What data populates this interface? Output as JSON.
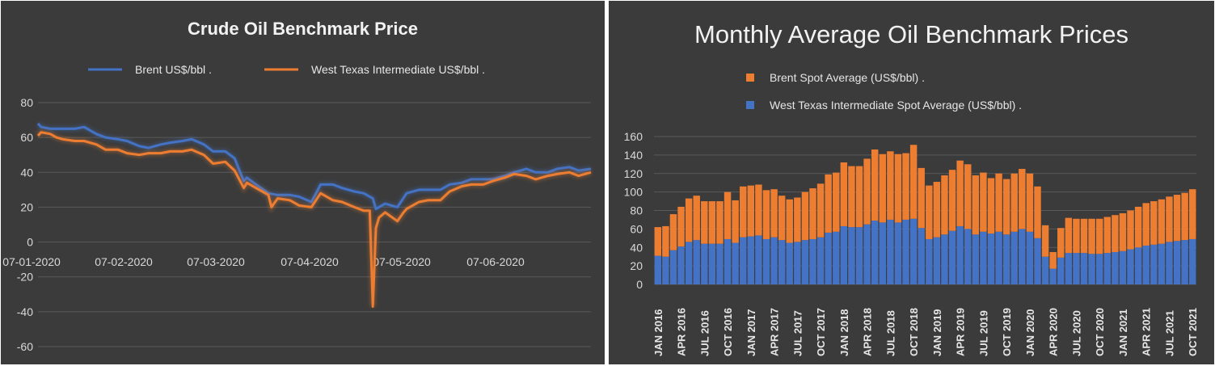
{
  "chart_data": [
    {
      "type": "line",
      "title": "Crude Oil Benchmark Price",
      "legend_position": "top",
      "grid": true,
      "ylim": [
        -60,
        80
      ],
      "yticks": [
        80,
        60,
        40,
        20,
        0,
        -20,
        -40,
        -60
      ],
      "xticks": [
        "07-01-2020",
        "07-02-2020",
        "07-03-2020",
        "07-04-2020",
        "07-05-2020",
        "07-06-2020"
      ],
      "x_start": "2020-01-02",
      "x_end": "2020-06-30",
      "series": [
        {
          "name": "Brent  US$/bbl .",
          "color": "#4472c4",
          "dates": [
            "2020-01-02",
            "2020-01-03",
            "2020-01-06",
            "2020-01-08",
            "2020-01-10",
            "2020-01-14",
            "2020-01-17",
            "2020-01-21",
            "2020-01-24",
            "2020-01-28",
            "2020-01-31",
            "2020-02-04",
            "2020-02-07",
            "2020-02-11",
            "2020-02-14",
            "2020-02-18",
            "2020-02-21",
            "2020-02-25",
            "2020-02-28",
            "2020-03-03",
            "2020-03-06",
            "2020-03-09",
            "2020-03-10",
            "2020-03-13",
            "2020-03-17",
            "2020-03-20",
            "2020-03-24",
            "2020-03-27",
            "2020-03-31",
            "2020-04-03",
            "2020-04-07",
            "2020-04-10",
            "2020-04-14",
            "2020-04-17",
            "2020-04-20",
            "2020-04-21",
            "2020-04-22",
            "2020-04-24",
            "2020-04-28",
            "2020-05-01",
            "2020-05-05",
            "2020-05-08",
            "2020-05-12",
            "2020-05-15",
            "2020-05-19",
            "2020-05-22",
            "2020-05-26",
            "2020-05-29",
            "2020-06-02",
            "2020-06-05",
            "2020-06-09",
            "2020-06-12",
            "2020-06-16",
            "2020-06-19",
            "2020-06-23",
            "2020-06-26",
            "2020-06-30"
          ],
          "values": [
            68,
            66,
            65,
            65,
            65,
            65,
            66,
            62,
            60,
            59,
            58,
            55,
            54,
            56,
            57,
            58,
            59,
            56,
            52,
            52,
            48,
            35,
            37,
            33,
            28,
            27,
            27,
            26,
            23,
            33,
            33,
            31,
            29,
            28,
            25,
            19,
            20,
            22,
            20,
            28,
            30,
            30,
            30,
            33,
            34,
            36,
            36,
            36,
            38,
            40,
            42,
            40,
            40,
            42,
            43,
            41,
            42
          ]
        },
        {
          "name": "West Texas Intermediate US$/bbl .",
          "color": "#ed7d31",
          "dates": [
            "2020-01-02",
            "2020-01-03",
            "2020-01-06",
            "2020-01-08",
            "2020-01-10",
            "2020-01-14",
            "2020-01-17",
            "2020-01-21",
            "2020-01-24",
            "2020-01-28",
            "2020-01-31",
            "2020-02-04",
            "2020-02-07",
            "2020-02-11",
            "2020-02-14",
            "2020-02-18",
            "2020-02-21",
            "2020-02-25",
            "2020-02-28",
            "2020-03-03",
            "2020-03-06",
            "2020-03-09",
            "2020-03-10",
            "2020-03-13",
            "2020-03-17",
            "2020-03-18",
            "2020-03-20",
            "2020-03-24",
            "2020-03-27",
            "2020-03-31",
            "2020-04-03",
            "2020-04-07",
            "2020-04-10",
            "2020-04-14",
            "2020-04-17",
            "2020-04-19",
            "2020-04-20",
            "2020-04-21",
            "2020-04-22",
            "2020-04-24",
            "2020-04-28",
            "2020-04-30",
            "2020-05-01",
            "2020-05-05",
            "2020-05-08",
            "2020-05-12",
            "2020-05-15",
            "2020-05-19",
            "2020-05-22",
            "2020-05-26",
            "2020-05-29",
            "2020-06-02",
            "2020-06-05",
            "2020-06-09",
            "2020-06-12",
            "2020-06-16",
            "2020-06-19",
            "2020-06-23",
            "2020-06-26",
            "2020-06-30"
          ],
          "values": [
            61,
            63,
            62,
            60,
            59,
            58,
            58,
            56,
            53,
            53,
            51,
            50,
            51,
            51,
            52,
            52,
            53,
            50,
            45,
            46,
            41,
            31,
            34,
            31,
            27,
            20,
            25,
            24,
            21,
            20,
            28,
            24,
            23,
            20,
            18,
            18,
            -37,
            8,
            14,
            17,
            12,
            17,
            19,
            23,
            24,
            24,
            29,
            32,
            33,
            33,
            35,
            37,
            39,
            38,
            36,
            38,
            39,
            40,
            38,
            40
          ]
        }
      ]
    },
    {
      "type": "bar",
      "stacked": true,
      "title": "Monthly Average Oil Benchmark Prices",
      "legend_position": "top-left",
      "grid": true,
      "ylim": [
        0,
        160
      ],
      "yticks": [
        160,
        140,
        120,
        100,
        80,
        60,
        40,
        20,
        0
      ],
      "xticks": [
        "JAN 2016",
        "APR 2016",
        "JUL 2016",
        "OCT 2016",
        "JAN 2017",
        "APR 2017",
        "JUL 2017",
        "OCT 2017",
        "JAN 2018",
        "APR 2018",
        "JUL 2018",
        "OCT 2018",
        "JAN 2019",
        "APR 2019",
        "JUL 2019",
        "OCT 2019",
        "JAN 2020",
        "APR 2020",
        "JUL 2020",
        "OCT 2020",
        "JAN 2021",
        "APR 2021",
        "JUL 2021",
        "OCT 2021"
      ],
      "series": [
        {
          "name": "West Texas Intermediate Spot Average (US$/bbl) .",
          "color": "#4472c4",
          "values": [
            31,
            30,
            37,
            41,
            46,
            48,
            44,
            44,
            44,
            49,
            45,
            51,
            52,
            53,
            49,
            51,
            48,
            45,
            46,
            48,
            49,
            51,
            56,
            57,
            63,
            62,
            62,
            65,
            69,
            67,
            70,
            67,
            70,
            71,
            61,
            49,
            51,
            54,
            58,
            63,
            60,
            54,
            57,
            55,
            57,
            54,
            57,
            60,
            57,
            50,
            30,
            17,
            29,
            34,
            34,
            34,
            33,
            33,
            34,
            35,
            36,
            38,
            40,
            42,
            43,
            44,
            46,
            47,
            48,
            49
          ]
        },
        {
          "name": "Brent Spot Average (US$/bbl) .",
          "color": "#ed7d31",
          "values": [
            31,
            33,
            39,
            43,
            47,
            48,
            46,
            46,
            46,
            51,
            46,
            55,
            55,
            55,
            53,
            52,
            48,
            47,
            48,
            52,
            55,
            58,
            63,
            64,
            69,
            66,
            66,
            71,
            77,
            74,
            74,
            74,
            72,
            80,
            65,
            58,
            60,
            64,
            66,
            71,
            70,
            64,
            64,
            60,
            63,
            60,
            63,
            65,
            63,
            56,
            34,
            18,
            32,
            38,
            37,
            37,
            38,
            38,
            39,
            40,
            41,
            42,
            44,
            46,
            47,
            48,
            49,
            50,
            51,
            54
          ]
        }
      ]
    }
  ]
}
